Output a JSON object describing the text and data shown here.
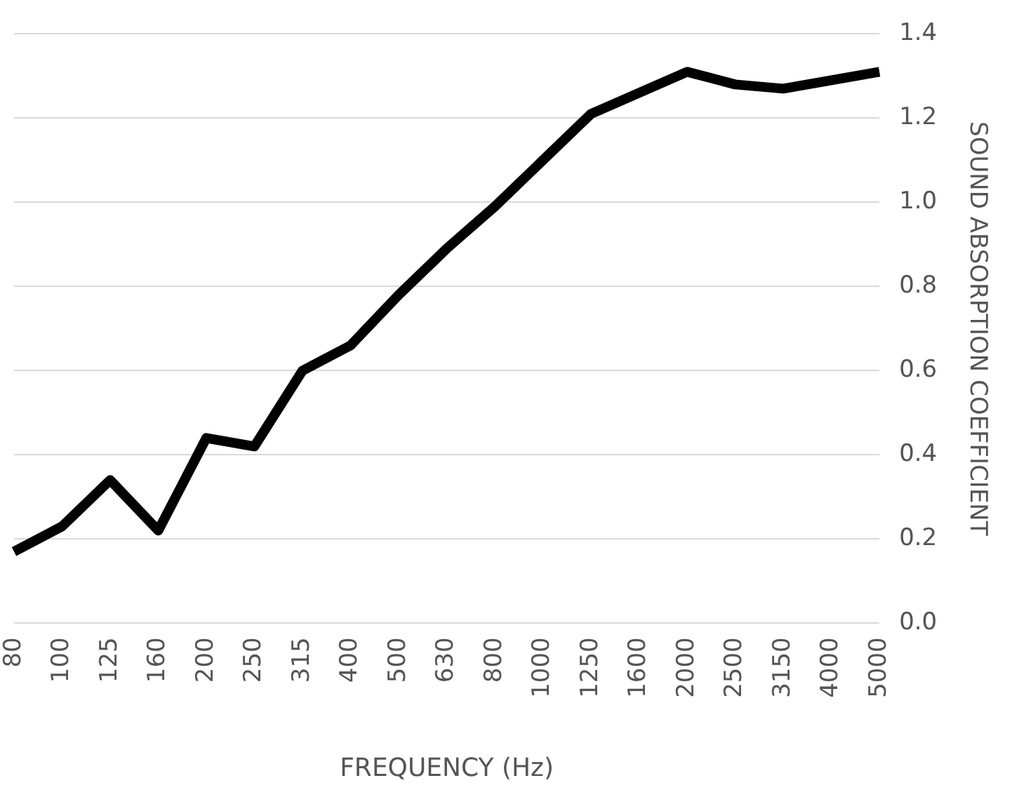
{
  "chart_data": {
    "type": "line",
    "xlabel": "FREQUENCY (Hz)",
    "ylabel": "SOUND ABSORPTION COEFFICIENT",
    "categories": [
      "80",
      "100",
      "125",
      "160",
      "200",
      "250",
      "315",
      "400",
      "500",
      "630",
      "800",
      "1000",
      "1250",
      "1600",
      "2000",
      "2500",
      "3150",
      "4000",
      "5000"
    ],
    "series": [
      {
        "color": "#000000",
        "values": [
          0.17,
          0.23,
          0.34,
          0.22,
          0.44,
          0.42,
          0.6,
          0.66,
          0.78,
          0.89,
          0.99,
          1.1,
          1.21,
          1.26,
          1.31,
          1.28,
          1.27,
          1.29,
          1.31
        ]
      }
    ],
    "ylim": [
      0,
      1.4
    ],
    "yticks": [
      {
        "value": 0,
        "label": "0.0"
      },
      0.2,
      0.4,
      0.6,
      0.8,
      {
        "value": 1,
        "label": "1.0"
      },
      1.2,
      1.4
    ],
    "grid": "y",
    "legend": false,
    "marker": "none",
    "line_style": "solid"
  }
}
